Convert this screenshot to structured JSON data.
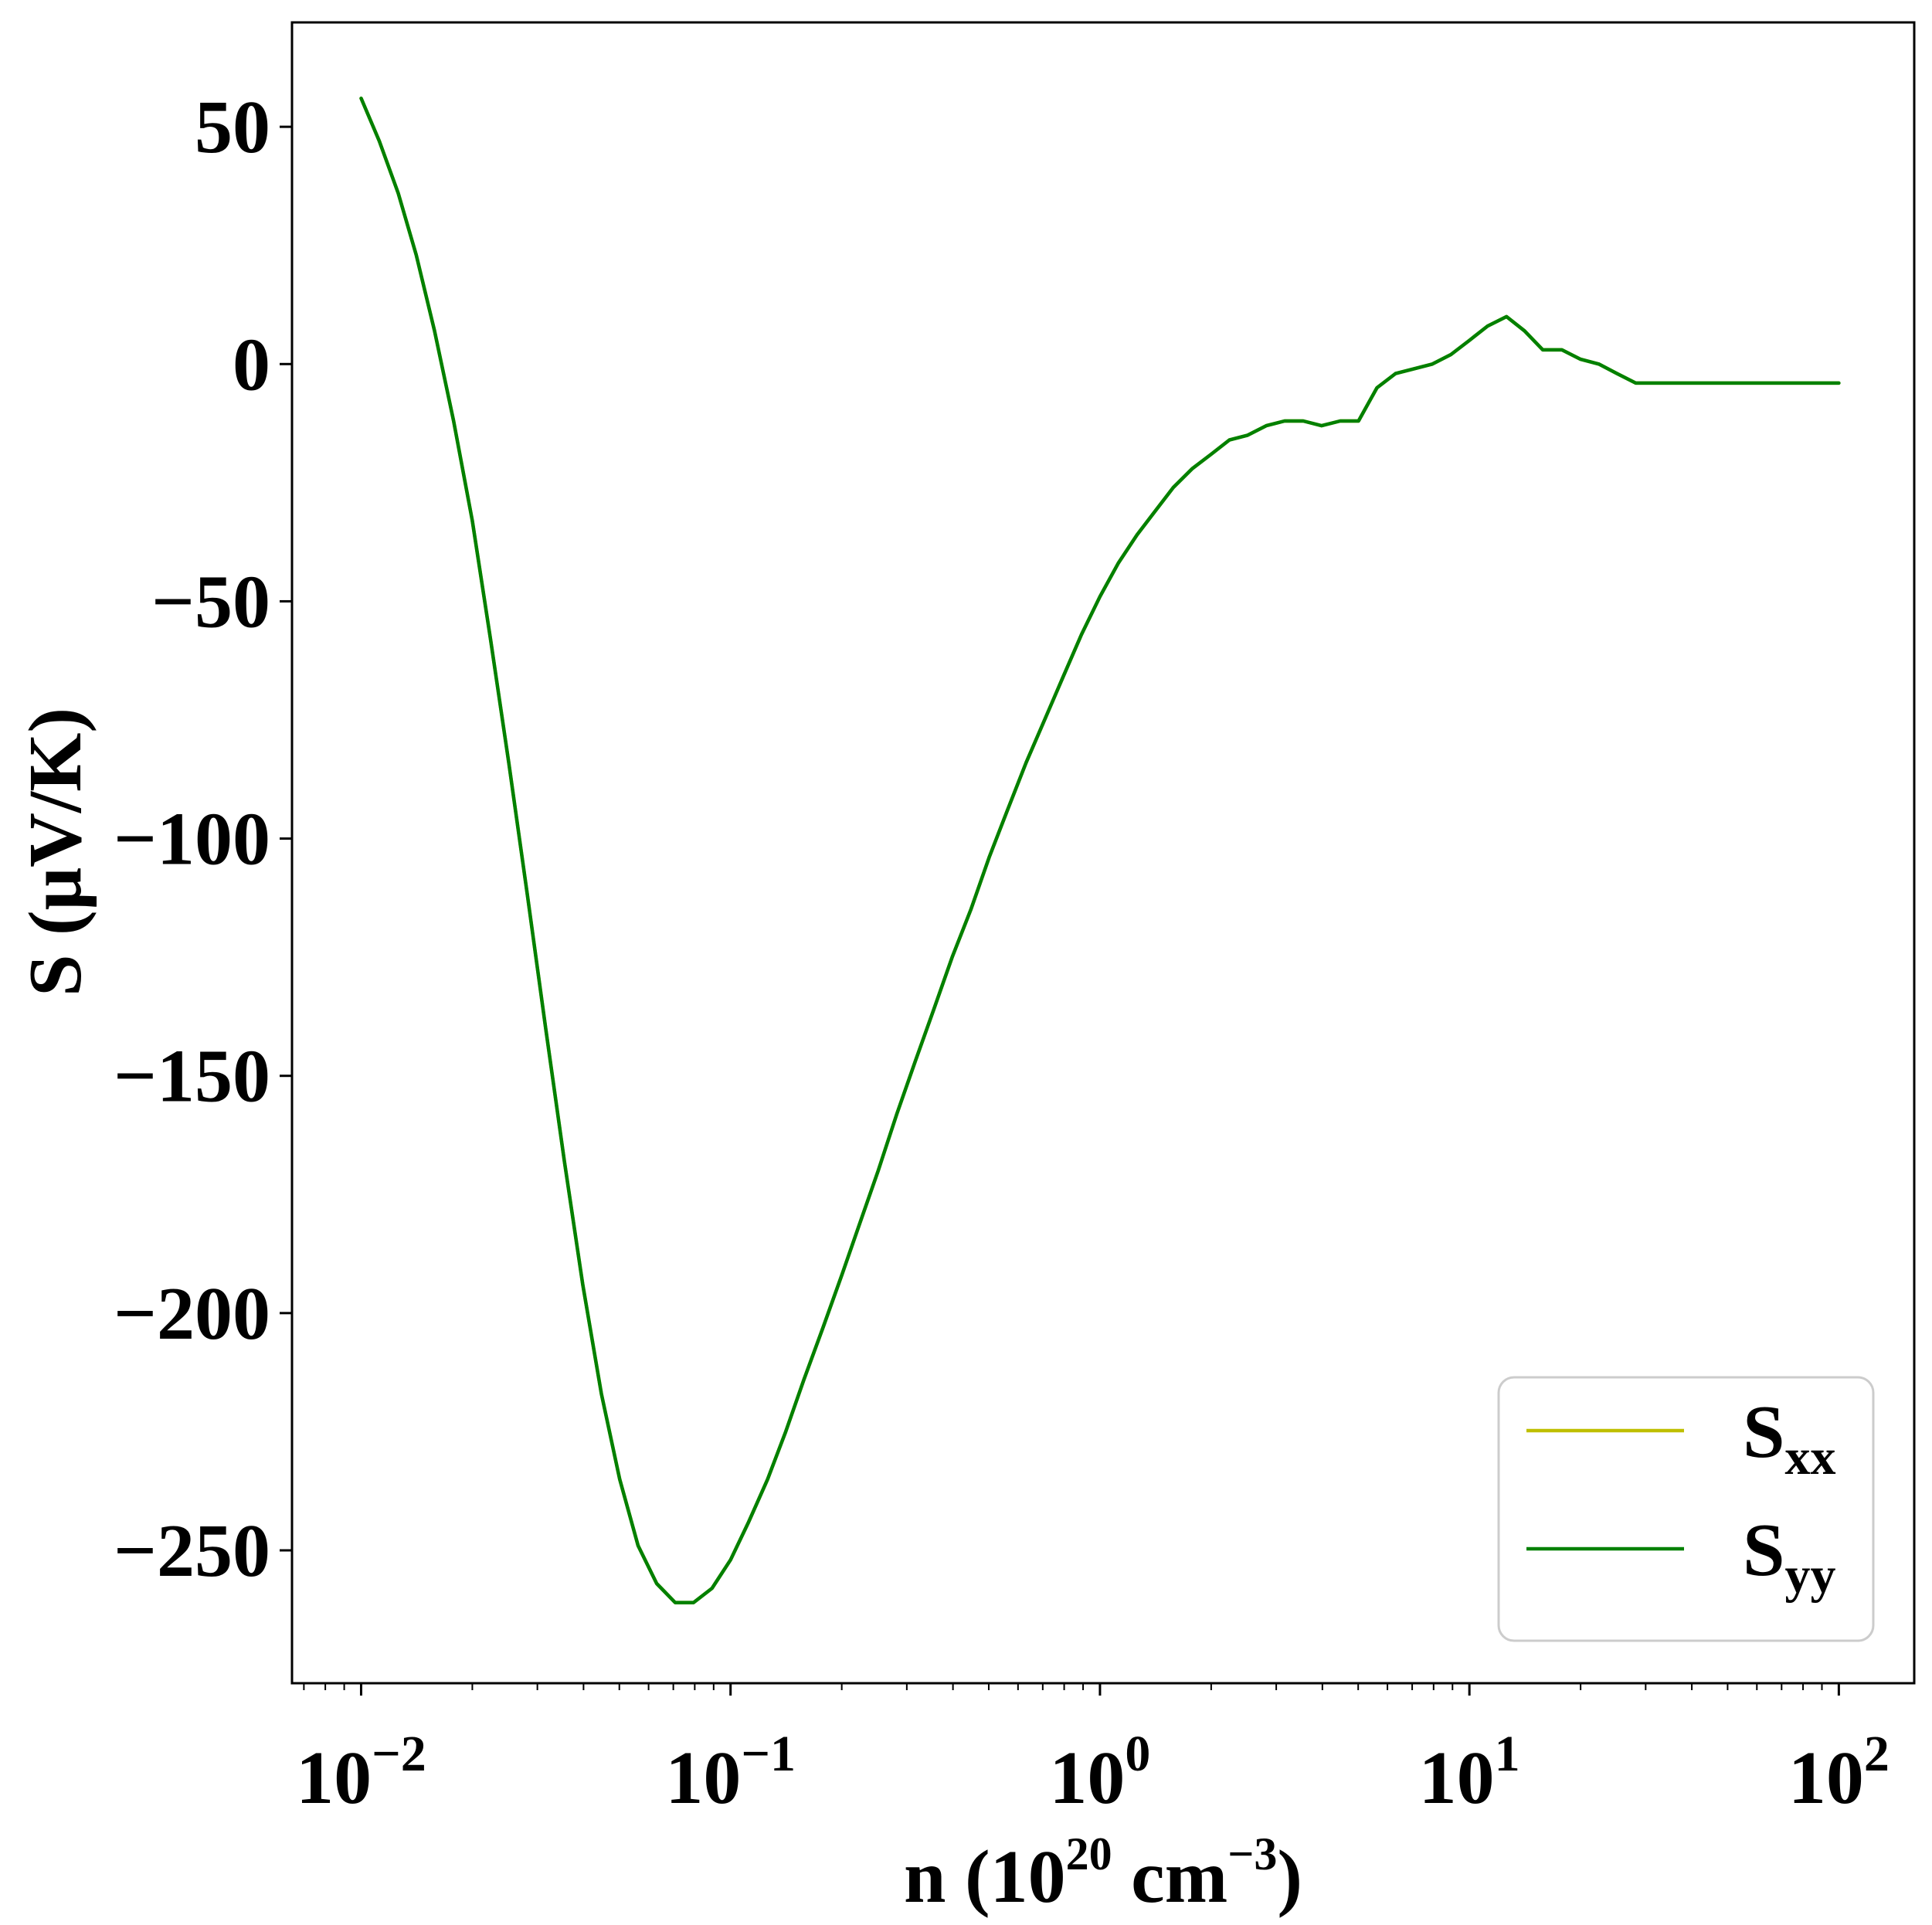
{
  "chart_data": {
    "type": "line",
    "xscale": "log",
    "xlim": [
      0.0065,
      160
    ],
    "ylim": [
      -278,
      72
    ],
    "xlabel": {
      "prefix": "n (10",
      "sup1": "20",
      "middle": " cm",
      "sup2": "−3",
      "suffix": ")"
    },
    "ylabel": "S (μV/K)",
    "x_ticks": [
      {
        "value": 0.01,
        "base": "10",
        "exp": "−2"
      },
      {
        "value": 0.1,
        "base": "10",
        "exp": "−1"
      },
      {
        "value": 1,
        "base": "10",
        "exp": "0"
      },
      {
        "value": 10,
        "base": "10",
        "exp": "1"
      },
      {
        "value": 100,
        "base": "10",
        "exp": "2"
      }
    ],
    "y_ticks": [
      {
        "value": 50,
        "label": "50"
      },
      {
        "value": 0,
        "label": "0"
      },
      {
        "value": -50,
        "label": "−50"
      },
      {
        "value": -100,
        "label": "−100"
      },
      {
        "value": -150,
        "label": "−150"
      },
      {
        "value": -200,
        "label": "−200"
      },
      {
        "value": -250,
        "label": "−250"
      }
    ],
    "grid": false,
    "legend": {
      "position": "lower-right",
      "entries": [
        {
          "series": 0,
          "label_main": "S",
          "label_sub": "xx"
        },
        {
          "series": 1,
          "label_main": "S",
          "label_sub": "yy"
        }
      ]
    },
    "series": [
      {
        "color": "#bfbf00",
        "x": [
          0.01,
          0.0112,
          0.0126,
          0.0141,
          0.0158,
          0.0178,
          0.02,
          0.0224,
          0.0251,
          0.0282,
          0.0316,
          0.0355,
          0.0398,
          0.0447,
          0.0501,
          0.0562,
          0.0631,
          0.0708,
          0.0794,
          0.0891,
          0.1,
          0.112,
          0.126,
          0.141,
          0.158,
          0.178,
          0.2,
          0.224,
          0.251,
          0.282,
          0.316,
          0.355,
          0.398,
          0.447,
          0.501,
          0.562,
          0.631,
          0.708,
          0.794,
          0.891,
          1.0,
          1.12,
          1.26,
          1.41,
          1.58,
          1.78,
          2.0,
          2.24,
          2.51,
          2.82,
          3.16,
          3.55,
          3.98,
          4.47,
          5.01,
          5.62,
          6.31,
          7.08,
          7.94,
          8.91,
          10.0,
          11.2,
          12.6,
          14.1,
          15.8,
          17.8,
          20.0,
          22.4,
          25.1,
          28.2,
          31.6,
          35.5,
          39.8,
          44.7,
          50.1,
          56.2,
          63.1,
          70.8,
          79.4,
          89.1,
          100
        ],
        "y": [
          56,
          47,
          36,
          23,
          7,
          -12,
          -33,
          -58,
          -84,
          -112,
          -140,
          -168,
          -194,
          -217,
          -235,
          -249,
          -257,
          -261,
          -261,
          -258,
          -252,
          -244,
          -235,
          -225,
          -214,
          -203,
          -192,
          -181,
          -170,
          -158,
          -147,
          -136,
          -125,
          -115,
          -104,
          -94,
          -84,
          -75,
          -66,
          -57,
          -49,
          -42,
          -36,
          -31,
          -26,
          -22,
          -19,
          -16,
          -15,
          -13,
          -12,
          -12,
          -13,
          -12,
          -12,
          -5,
          -2,
          -1,
          0,
          2,
          5,
          8,
          10,
          7,
          3,
          3,
          1,
          0,
          -2,
          -4,
          -4,
          -4,
          -4,
          -4,
          -4,
          -4,
          -4,
          -4,
          -4,
          -4,
          -4
        ]
      },
      {
        "color": "#008000",
        "x": [
          0.01,
          0.0112,
          0.0126,
          0.0141,
          0.0158,
          0.0178,
          0.02,
          0.0224,
          0.0251,
          0.0282,
          0.0316,
          0.0355,
          0.0398,
          0.0447,
          0.0501,
          0.0562,
          0.0631,
          0.0708,
          0.0794,
          0.0891,
          0.1,
          0.112,
          0.126,
          0.141,
          0.158,
          0.178,
          0.2,
          0.224,
          0.251,
          0.282,
          0.316,
          0.355,
          0.398,
          0.447,
          0.501,
          0.562,
          0.631,
          0.708,
          0.794,
          0.891,
          1.0,
          1.12,
          1.26,
          1.41,
          1.58,
          1.78,
          2.0,
          2.24,
          2.51,
          2.82,
          3.16,
          3.55,
          3.98,
          4.47,
          5.01,
          5.62,
          6.31,
          7.08,
          7.94,
          8.91,
          10.0,
          11.2,
          12.6,
          14.1,
          15.8,
          17.8,
          20.0,
          22.4,
          25.1,
          28.2,
          31.6,
          35.5,
          39.8,
          44.7,
          50.1,
          56.2,
          63.1,
          70.8,
          79.4,
          89.1,
          100
        ],
        "y": [
          56,
          47,
          36,
          23,
          7,
          -12,
          -33,
          -58,
          -84,
          -112,
          -140,
          -168,
          -194,
          -217,
          -235,
          -249,
          -257,
          -261,
          -261,
          -258,
          -252,
          -244,
          -235,
          -225,
          -214,
          -203,
          -192,
          -181,
          -170,
          -158,
          -147,
          -136,
          -125,
          -115,
          -104,
          -94,
          -84,
          -75,
          -66,
          -57,
          -49,
          -42,
          -36,
          -31,
          -26,
          -22,
          -19,
          -16,
          -15,
          -13,
          -12,
          -12,
          -13,
          -12,
          -12,
          -5,
          -2,
          -1,
          0,
          2,
          5,
          8,
          10,
          7,
          3,
          3,
          1,
          0,
          -2,
          -4,
          -4,
          -4,
          -4,
          -4,
          -4,
          -4,
          -4,
          -4,
          -4,
          -4,
          -4
        ]
      }
    ]
  }
}
